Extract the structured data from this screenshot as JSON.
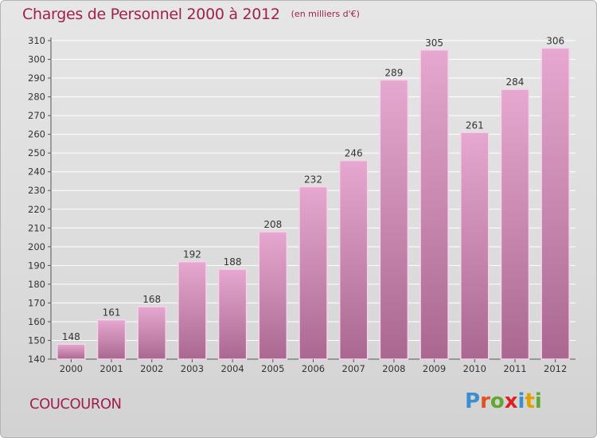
{
  "header": {
    "title": "Charges de Personnel 2000 à 2012",
    "subtitle": "(en milliers d'€)"
  },
  "footer": {
    "commune": "COUCOURON",
    "logo": {
      "text": "Proxiti",
      "colors": [
        "#3a8fd0",
        "#e05020",
        "#60a830",
        "#e02020",
        "#3a8fd0",
        "#e0a000",
        "#60a830"
      ]
    }
  },
  "colors": {
    "title": "#a02050",
    "bar_top": "#e6a8d0",
    "bar_bottom": "#aa6890",
    "grid": "#ffffff"
  },
  "chart_data": {
    "type": "bar",
    "title": "Charges de Personnel 2000 à 2012",
    "subtitle": "(en milliers d'€)",
    "categories": [
      "2000",
      "2001",
      "2002",
      "2003",
      "2004",
      "2005",
      "2006",
      "2007",
      "2008",
      "2009",
      "2010",
      "2011",
      "2012"
    ],
    "values": [
      148,
      161,
      168,
      192,
      188,
      208,
      232,
      246,
      289,
      305,
      261,
      284,
      306
    ],
    "ylim": [
      140,
      310
    ],
    "yticks": [
      140,
      150,
      160,
      170,
      180,
      190,
      200,
      210,
      220,
      230,
      240,
      250,
      260,
      270,
      280,
      290,
      300,
      310
    ],
    "grid": true,
    "data_labels": true
  }
}
